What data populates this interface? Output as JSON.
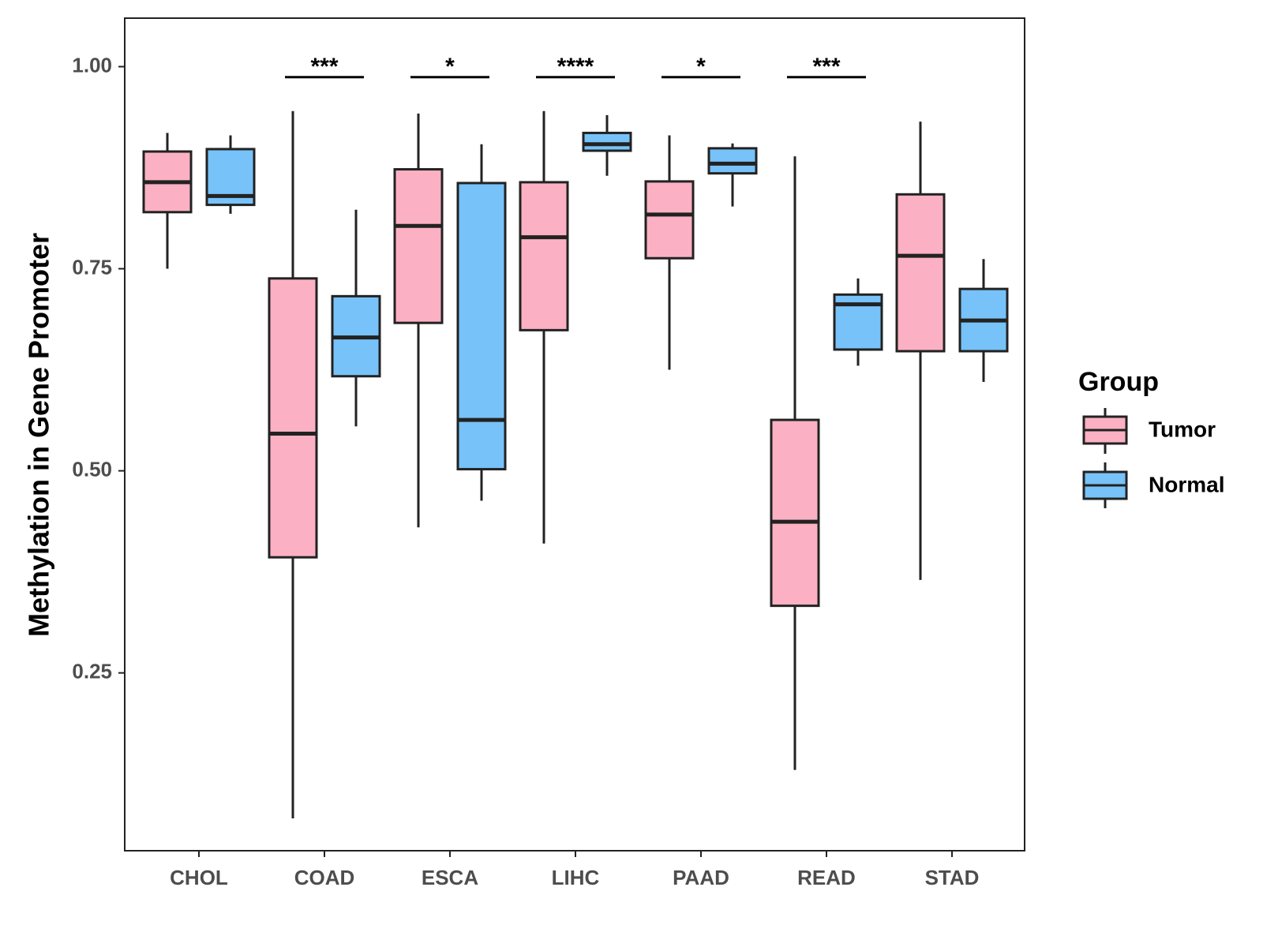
{
  "chart_data": {
    "type": "boxplot",
    "title": "",
    "xlabel": "",
    "ylabel": "Methylation in Gene Promoter",
    "ylim": [
      0.03,
      1.06
    ],
    "yticks": [
      0.25,
      0.5,
      0.75,
      1.0
    ],
    "ytick_labels": [
      "0.25",
      "0.50",
      "0.75",
      "1.00"
    ],
    "grid": false,
    "categories": [
      "CHOL",
      "COAD",
      "ESCA",
      "LIHC",
      "PAAD",
      "READ",
      "STAD"
    ],
    "legend": {
      "title": "Group",
      "position": "right",
      "entries": [
        "Tumor",
        "Normal"
      ]
    },
    "colors": {
      "Tumor": "#fbb1c3",
      "Normal": "#77c2f8",
      "stroke": "#222222"
    },
    "series": [
      {
        "name": "Tumor",
        "boxes": [
          {
            "min": 0.75,
            "q1": 0.82,
            "median": 0.857,
            "q3": 0.895,
            "max": 0.918
          },
          {
            "min": 0.07,
            "q1": 0.393,
            "median": 0.546,
            "q3": 0.738,
            "max": 0.945
          },
          {
            "min": 0.43,
            "q1": 0.683,
            "median": 0.803,
            "q3": 0.873,
            "max": 0.942
          },
          {
            "min": 0.41,
            "q1": 0.674,
            "median": 0.789,
            "q3": 0.857,
            "max": 0.945
          },
          {
            "min": 0.625,
            "q1": 0.763,
            "median": 0.817,
            "q3": 0.858,
            "max": 0.915
          },
          {
            "min": 0.13,
            "q1": 0.333,
            "median": 0.437,
            "q3": 0.563,
            "max": 0.889
          },
          {
            "min": 0.365,
            "q1": 0.648,
            "median": 0.766,
            "q3": 0.842,
            "max": 0.932
          }
        ]
      },
      {
        "name": "Normal",
        "boxes": [
          {
            "min": 0.818,
            "q1": 0.829,
            "median": 0.84,
            "q3": 0.898,
            "max": 0.915
          },
          {
            "min": 0.555,
            "q1": 0.617,
            "median": 0.665,
            "q3": 0.716,
            "max": 0.823
          },
          {
            "min": 0.463,
            "q1": 0.502,
            "median": 0.563,
            "q3": 0.856,
            "max": 0.904
          },
          {
            "min": 0.865,
            "q1": 0.896,
            "median": 0.904,
            "q3": 0.918,
            "max": 0.94
          },
          {
            "min": 0.827,
            "q1": 0.868,
            "median": 0.88,
            "q3": 0.899,
            "max": 0.905
          },
          {
            "min": 0.63,
            "q1": 0.65,
            "median": 0.706,
            "q3": 0.718,
            "max": 0.738
          },
          {
            "min": 0.61,
            "q1": 0.648,
            "median": 0.686,
            "q3": 0.725,
            "max": 0.762
          }
        ]
      }
    ],
    "significance": [
      {
        "category": "COAD",
        "label": "***",
        "y": 0.987
      },
      {
        "category": "ESCA",
        "label": "*",
        "y": 0.987
      },
      {
        "category": "LIHC",
        "label": "****",
        "y": 0.987
      },
      {
        "category": "PAAD",
        "label": "*",
        "y": 0.987
      },
      {
        "category": "READ",
        "label": "***",
        "y": 0.987
      }
    ]
  }
}
